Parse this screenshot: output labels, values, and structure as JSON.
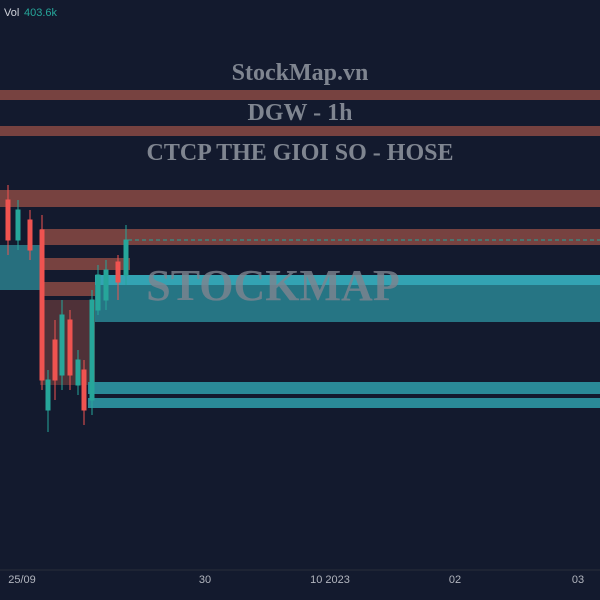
{
  "header": {
    "volume_label": "Vol",
    "volume_value": "403.6k"
  },
  "watermark": {
    "site": "StockMap.vn",
    "symbol": "DGW - 1h",
    "company": "CTCP THE GIOI SO - HOSE",
    "brand": "STOCKMAP"
  },
  "x_axis": {
    "labels": [
      "25/09",
      "30",
      "10 2023",
      "02",
      "03"
    ]
  }
}
